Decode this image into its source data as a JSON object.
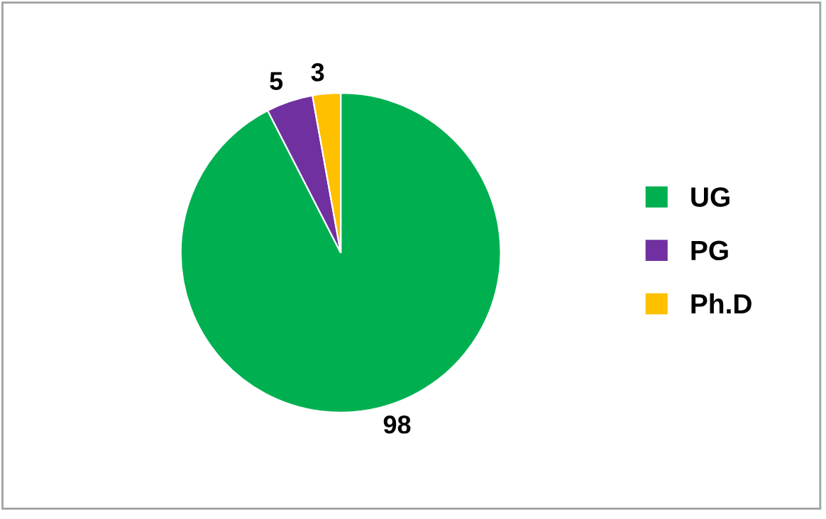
{
  "chart_data": {
    "type": "pie",
    "categories": [
      "UG",
      "PG",
      "Ph.D"
    ],
    "values": [
      98,
      5,
      3
    ],
    "colors": [
      "#00b050",
      "#7030a0",
      "#ffc000"
    ],
    "data_labels": true,
    "legend": "right"
  }
}
